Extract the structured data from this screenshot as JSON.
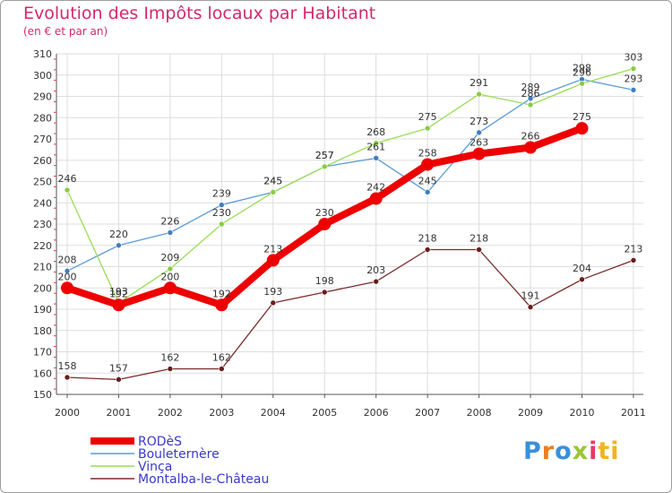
{
  "chart_data": {
    "type": "line",
    "title": "Evolution des Impôts locaux par Habitant",
    "subtitle": "(en € et par an)",
    "xlabel": "",
    "ylabel": "",
    "categories": [
      "2000",
      "2001",
      "2002",
      "2003",
      "2004",
      "2005",
      "2006",
      "2007",
      "2008",
      "2009",
      "2010",
      "2011"
    ],
    "ylim": [
      150,
      310
    ],
    "yticks": [
      150,
      160,
      170,
      180,
      190,
      200,
      210,
      220,
      230,
      240,
      250,
      260,
      270,
      280,
      290,
      300,
      310
    ],
    "grid": true,
    "legend_position": "bottom-left",
    "series": [
      {
        "name": "RODèS",
        "color": "#ee0000",
        "values": [
          200,
          192,
          200,
          192,
          213,
          230,
          242,
          258,
          263,
          266,
          275,
          null
        ],
        "labels": [
          "200",
          "192",
          "200",
          "192",
          "213",
          "230",
          "242",
          "258",
          "263",
          "266",
          "275",
          ""
        ],
        "emphasis": true
      },
      {
        "name": "Bouleternère",
        "color": "#5b9bd5",
        "values": [
          208,
          220,
          226,
          239,
          245,
          257,
          261,
          245,
          273,
          289,
          298,
          293
        ],
        "labels": [
          "208",
          "220",
          "226",
          "239",
          "245",
          "257",
          "261",
          "245",
          "273",
          "289",
          "298",
          "293"
        ]
      },
      {
        "name": "Vinça",
        "color": "#99dd55",
        "values": [
          246,
          193,
          209,
          230,
          245,
          257,
          268,
          275,
          291,
          286,
          296,
          303
        ],
        "labels": [
          "246",
          "193",
          "209",
          "230",
          "245",
          "257",
          "268",
          "275",
          "291",
          "286",
          "296",
          "303"
        ]
      },
      {
        "name": "Montalba-le-Château",
        "color": "#7a2a2a",
        "values": [
          158,
          157,
          162,
          162,
          193,
          198,
          203,
          218,
          218,
          191,
          204,
          213
        ],
        "labels": [
          "158",
          "157",
          "162",
          "162",
          "193",
          "198",
          "203",
          "218",
          "218",
          "191",
          "204",
          "213"
        ]
      }
    ]
  },
  "logo": {
    "text": "Proxiti",
    "letters": [
      "P",
      "r",
      "o",
      "x",
      "i",
      "ti"
    ]
  }
}
